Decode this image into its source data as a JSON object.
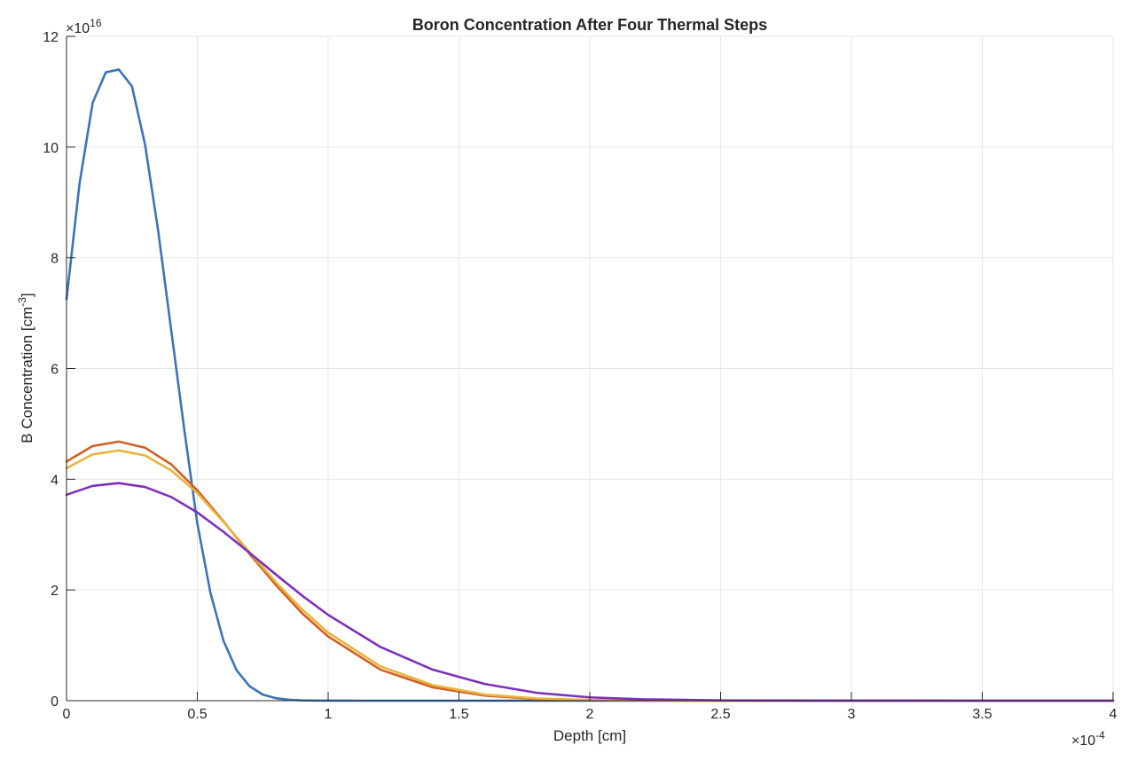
{
  "chart_data": {
    "type": "line",
    "title": "Boron Concentration After Four Thermal Steps",
    "xlabel": "Depth [cm]",
    "ylabel": "B Concentration [cm^-3]",
    "ylabel_base": "B Concentration [cm",
    "ylabel_sup": "-3",
    "ylabel_close": "]",
    "x_multiplier": {
      "base": "×10",
      "exp": "-4"
    },
    "y_multiplier": {
      "base": "×10",
      "exp": "16"
    },
    "xlim": [
      0,
      4
    ],
    "ylim": [
      0,
      12
    ],
    "xticks": [
      0,
      0.5,
      1,
      1.5,
      2,
      2.5,
      3,
      3.5,
      4
    ],
    "xtick_labels": [
      "0",
      "0.5",
      "1",
      "1.5",
      "2",
      "2.5",
      "3",
      "3.5",
      "4"
    ],
    "yticks": [
      0,
      2,
      4,
      6,
      8,
      10,
      12
    ],
    "ytick_labels": [
      "0",
      "2",
      "4",
      "6",
      "8",
      "10",
      "12"
    ],
    "grid": true,
    "series": [
      {
        "color": "#3b74b8",
        "x": [
          0,
          0.05,
          0.1,
          0.15,
          0.2,
          0.25,
          0.3,
          0.35,
          0.4,
          0.45,
          0.5,
          0.55,
          0.6,
          0.65,
          0.7,
          0.75,
          0.8,
          0.85,
          0.9,
          0.95,
          1.0,
          1.1,
          1.2,
          1.5,
          2.0,
          3.0,
          4.0
        ],
        "y": [
          7.25,
          9.35,
          10.8,
          11.35,
          11.4,
          11.1,
          10.05,
          8.5,
          6.7,
          4.9,
          3.2,
          1.95,
          1.08,
          0.55,
          0.26,
          0.11,
          0.045,
          0.017,
          0.006,
          0.002,
          0.0007,
          0.0001,
          0,
          0,
          0,
          0,
          0
        ]
      },
      {
        "color": "#d15f27",
        "x": [
          0,
          0.1,
          0.2,
          0.3,
          0.4,
          0.5,
          0.6,
          0.7,
          0.8,
          0.9,
          1.0,
          1.2,
          1.4,
          1.6,
          1.8,
          2.0,
          2.2,
          2.5,
          3.0,
          3.5,
          4.0
        ],
        "y": [
          4.32,
          4.6,
          4.68,
          4.57,
          4.27,
          3.8,
          3.24,
          2.65,
          2.09,
          1.58,
          1.16,
          0.56,
          0.24,
          0.09,
          0.03,
          0.01,
          0.003,
          0.0005,
          0,
          0,
          0
        ]
      },
      {
        "color": "#e8b43a",
        "x": [
          0,
          0.1,
          0.2,
          0.3,
          0.4,
          0.5,
          0.6,
          0.7,
          0.8,
          0.9,
          1.0,
          1.2,
          1.4,
          1.6,
          1.8,
          2.0,
          2.2,
          2.5,
          3.0,
          3.5,
          4.0
        ],
        "y": [
          4.2,
          4.45,
          4.52,
          4.43,
          4.16,
          3.75,
          3.23,
          2.68,
          2.14,
          1.65,
          1.23,
          0.62,
          0.28,
          0.11,
          0.04,
          0.013,
          0.004,
          0.0007,
          0,
          0,
          0
        ]
      },
      {
        "color": "#7e2fbd",
        "x": [
          0,
          0.1,
          0.2,
          0.3,
          0.4,
          0.5,
          0.6,
          0.7,
          0.8,
          0.9,
          1.0,
          1.2,
          1.4,
          1.6,
          1.8,
          2.0,
          2.2,
          2.5,
          3.0,
          3.5,
          4.0
        ],
        "y": [
          3.72,
          3.88,
          3.93,
          3.86,
          3.68,
          3.4,
          3.05,
          2.67,
          2.28,
          1.9,
          1.55,
          0.97,
          0.56,
          0.3,
          0.14,
          0.06,
          0.025,
          0.006,
          0.0005,
          0,
          0
        ]
      }
    ]
  }
}
